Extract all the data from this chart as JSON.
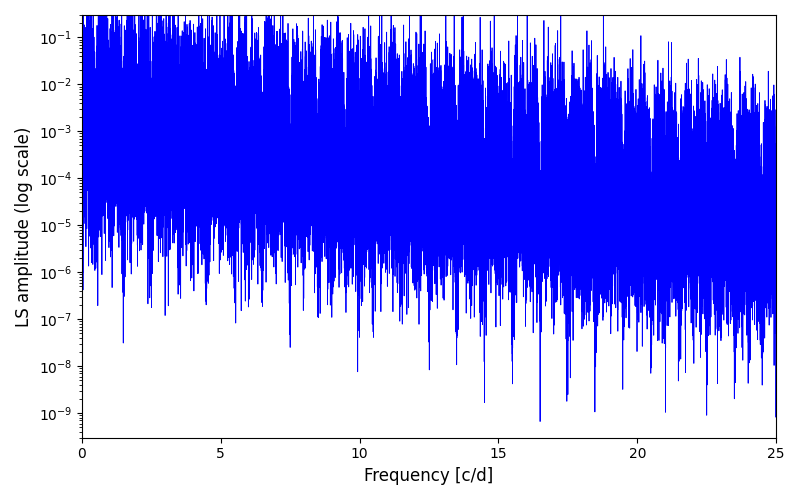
{
  "xlabel": "Frequency [c/d]",
  "ylabel": "LS amplitude (log scale)",
  "xlim": [
    0,
    25
  ],
  "ylim": [
    3e-10,
    0.3
  ],
  "line_color": "#0000ff",
  "line_width": 0.6,
  "yscale": "log",
  "figsize": [
    8.0,
    5.0
  ],
  "dpi": 100,
  "seed": 17,
  "n_points": 50000,
  "freq_max": 25.0,
  "background_color": "#ffffff"
}
